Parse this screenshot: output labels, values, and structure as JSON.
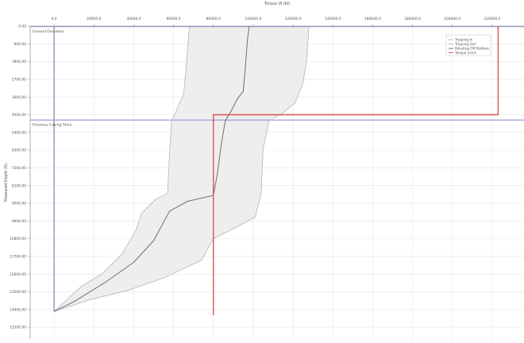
{
  "chart_data": {
    "type": "line",
    "title": "",
    "xlabel": "Torque (ft·lbf)",
    "ylabel": "Measured Depth (ft)",
    "x_axis_position": "top",
    "y_axis_inverted": true,
    "xlim": [
      -12000,
      236000
    ],
    "ylim": [
      0,
      15900
    ],
    "x_ticks": [
      {
        "value": 0,
        "label": "0.0"
      },
      {
        "value": 20000,
        "label": "20000.0"
      },
      {
        "value": 40000,
        "label": "40000.0"
      },
      {
        "value": 60000,
        "label": "60000.0"
      },
      {
        "value": 80000,
        "label": "80000.0"
      },
      {
        "value": 100000,
        "label": "100000.0"
      },
      {
        "value": 120000,
        "label": "120000.0"
      },
      {
        "value": 140000,
        "label": "140000.0"
      },
      {
        "value": 160000,
        "label": "160000.0"
      },
      {
        "value": 180000,
        "label": "180000.0"
      },
      {
        "value": 200000,
        "label": "200000.0"
      },
      {
        "value": 220000,
        "label": "220000.0"
      }
    ],
    "y_ticks": [
      {
        "value": 0,
        "label": "0.00"
      },
      {
        "value": 900,
        "label": "900.00"
      },
      {
        "value": 1800,
        "label": "1800.00"
      },
      {
        "value": 2700,
        "label": "2700.00"
      },
      {
        "value": 3600,
        "label": "3600.00"
      },
      {
        "value": 4500,
        "label": "4500.00"
      },
      {
        "value": 5400,
        "label": "5400.00"
      },
      {
        "value": 6300,
        "label": "6300.00"
      },
      {
        "value": 7200,
        "label": "7200.00"
      },
      {
        "value": 8100,
        "label": "8100.00"
      },
      {
        "value": 9000,
        "label": "9000.00"
      },
      {
        "value": 9900,
        "label": "9900.00"
      },
      {
        "value": 10800,
        "label": "10800.00"
      },
      {
        "value": 11700,
        "label": "11700.00"
      },
      {
        "value": 12600,
        "label": "12600.00"
      },
      {
        "value": 13500,
        "label": "13500.00"
      },
      {
        "value": 14400,
        "label": "14400.00"
      },
      {
        "value": 15300,
        "label": "15300.00"
      }
    ],
    "reference_lines": [
      {
        "label": "Ground Elevation",
        "depth": 0,
        "color": "#9b8fd6"
      },
      {
        "label": "Previous Casing Shoe",
        "depth": 4750,
        "color": "#9b8fd6"
      }
    ],
    "x_zero_line_color": "#7f9ab8",
    "grid": true,
    "legend": {
      "position": "top-right",
      "entries": [
        {
          "label": "Tripping In",
          "color": "#b5b5b5"
        },
        {
          "label": "Tripping Out",
          "color": "#b5b5b5"
        },
        {
          "label": "Rotating Off Bottom",
          "color": "#6d6d6d"
        },
        {
          "label": "Torque Limit",
          "color": "#d9534f"
        }
      ]
    },
    "series": [
      {
        "name": "Tripping In",
        "color": "#b5b5b5",
        "points": [
          [
            0,
            14500
          ],
          [
            14000,
            13200
          ],
          [
            24000,
            12600
          ],
          [
            34000,
            11600
          ],
          [
            41000,
            10400
          ],
          [
            44000,
            9500
          ],
          [
            51000,
            8800
          ],
          [
            57000,
            8500
          ],
          [
            58000,
            6500
          ],
          [
            59000,
            4800
          ],
          [
            61000,
            4400
          ],
          [
            63000,
            3900
          ],
          [
            65000,
            3500
          ],
          [
            66000,
            2500
          ],
          [
            67000,
            1200
          ],
          [
            68000,
            0
          ]
        ]
      },
      {
        "name": "Tripping Out",
        "color": "#b5b5b5",
        "points": [
          [
            0,
            14500
          ],
          [
            18000,
            13900
          ],
          [
            38000,
            13400
          ],
          [
            55000,
            12800
          ],
          [
            74000,
            11900
          ],
          [
            80000,
            10800
          ],
          [
            90000,
            10300
          ],
          [
            101000,
            9700
          ],
          [
            104000,
            8500
          ],
          [
            105000,
            6200
          ],
          [
            108000,
            4800
          ],
          [
            115000,
            4400
          ],
          [
            121000,
            3900
          ],
          [
            125000,
            2900
          ],
          [
            127000,
            1600
          ],
          [
            128000,
            0
          ]
        ]
      },
      {
        "name": "Rotating Off Bottom",
        "color": "#6d6d6d",
        "points": [
          [
            0,
            14500
          ],
          [
            10000,
            14000
          ],
          [
            26000,
            13000
          ],
          [
            40000,
            12000
          ],
          [
            50000,
            10900
          ],
          [
            58000,
            9400
          ],
          [
            67000,
            8900
          ],
          [
            80000,
            8600
          ],
          [
            82000,
            7500
          ],
          [
            84000,
            6000
          ],
          [
            86000,
            4800
          ],
          [
            89000,
            4300
          ],
          [
            92000,
            3700
          ],
          [
            95000,
            3300
          ],
          [
            96000,
            2200
          ],
          [
            97000,
            800
          ],
          [
            98000,
            0
          ]
        ]
      },
      {
        "name": "Torque Limit",
        "color": "#d9534f",
        "points": [
          [
            80000,
            14700
          ],
          [
            80000,
            4500
          ],
          [
            223000,
            4500
          ],
          [
            223000,
            0
          ]
        ]
      }
    ]
  }
}
